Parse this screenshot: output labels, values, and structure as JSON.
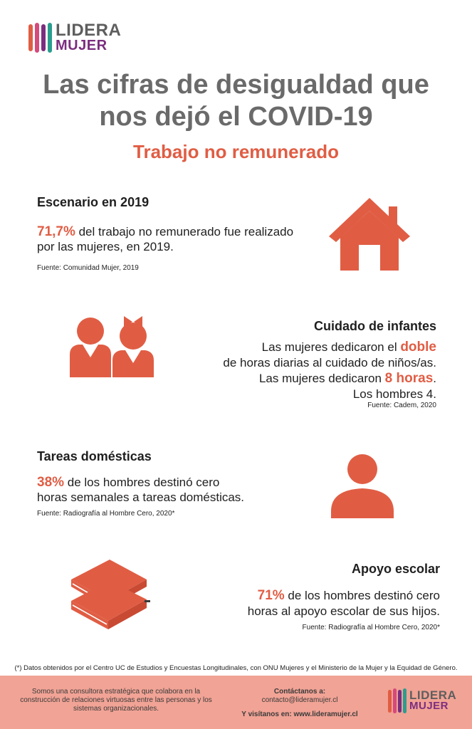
{
  "brand": {
    "line1": "LIDERA",
    "line2": "MUJER",
    "colors": {
      "orange": "#e05d44",
      "purple": "#7b2d7f",
      "gray": "#5e5e5e",
      "teal": "#2a9d8f",
      "pink": "#d6497b"
    }
  },
  "header": {
    "title_line1": "Las cifras de desigualdad que",
    "title_line2": "nos dejó el COVID-19",
    "subtitle": "Trabajo no remunerado"
  },
  "sections": {
    "escenario": {
      "title": "Escenario en 2019",
      "highlight": "71,7%",
      "text_a": " del trabajo no remunerado fue realizado",
      "text_b": "por las mujeres, en 2019.",
      "source": "Fuente: Comunidad Mujer, 2019",
      "icon": "house-icon"
    },
    "cuidado": {
      "title": "Cuidado de infantes",
      "line1_a": "Las mujeres dedicaron el ",
      "line1_hl": "doble",
      "line2": "de horas diarias al cuidado de niños/as.",
      "line3_a": "Las mujeres dedicaron ",
      "line3_hl": "8 horas",
      "line3_b": ".",
      "line4": "Los hombres 4.",
      "source": "Fuente: Cadem, 2020",
      "icon": "children-icon"
    },
    "tareas": {
      "title": "Tareas domésticas",
      "highlight": "38%",
      "text_a": " de los hombres destinó cero",
      "text_b": "horas semanales a tareas domésticas.",
      "source": "Fuente: Radiografía al Hombre Cero, 2020*",
      "icon": "person-icon"
    },
    "apoyo": {
      "title": "Apoyo escolar",
      "highlight": "71%",
      "text_a": " de los hombres destinó cero",
      "text_b": "horas al apoyo escolar de sus hijos.",
      "source": "Fuente: Radiografía al Hombre Cero, 2020*",
      "icon": "books-icon"
    }
  },
  "footnote": "(*) Datos obtenidos por el Centro UC de Estudios y Encuestas Longitudinales, con ONU Mujeres y el Ministerio de la Mujer y la Equidad de Género.",
  "footer": {
    "about": "Somos una consultora estratégica que colabora en la construcción de relaciones virtuosas entre las personas y los sistemas organizacionales.",
    "contact_label": "Contáctanos a:",
    "contact_email": "contacto@lideramujer.cl",
    "visit": "Y visítanos en: www.lideramujer.cl"
  }
}
